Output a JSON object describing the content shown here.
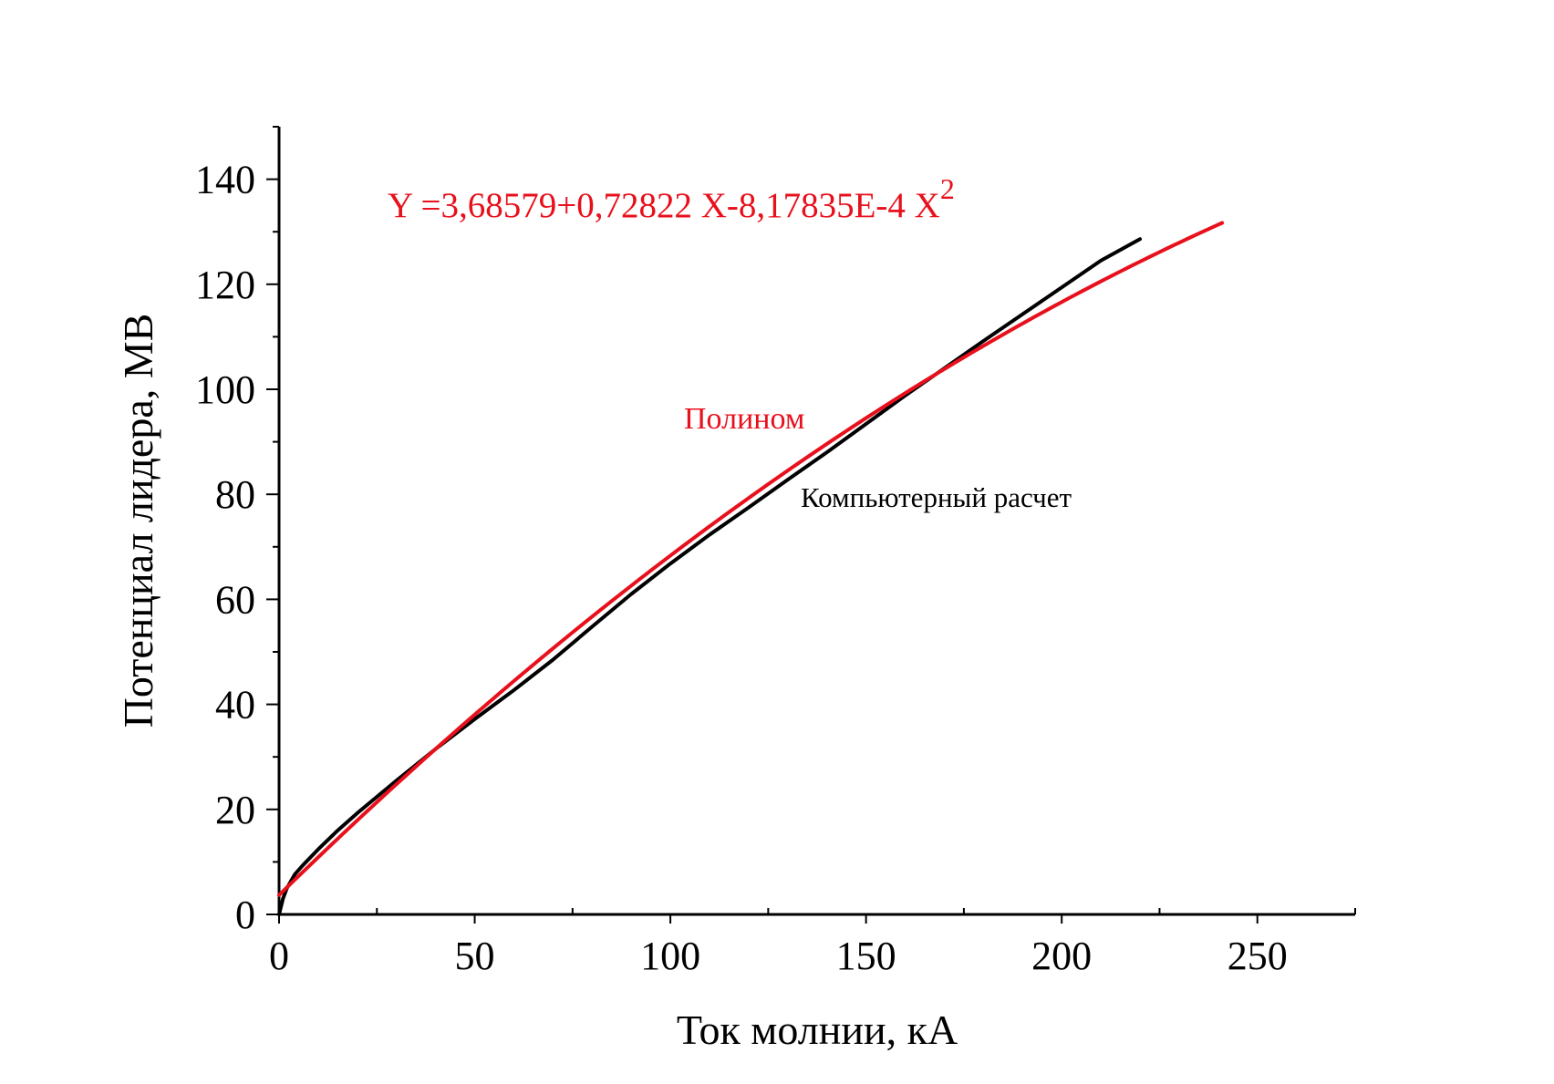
{
  "chart_data": {
    "type": "line",
    "title": "",
    "xlabel": "Ток молнии,  кА",
    "ylabel": "Потенциал лидера,  МВ",
    "xlim": [
      0,
      275
    ],
    "ylim": [
      0,
      150
    ],
    "xticks": [
      0,
      50,
      100,
      150,
      200,
      250
    ],
    "xtick_labels": [
      "0",
      "50",
      "100",
      "150",
      "200",
      "250"
    ],
    "xminor_ticks": [
      25,
      75,
      125,
      175,
      225,
      275
    ],
    "yticks": [
      0,
      20,
      40,
      60,
      80,
      100,
      120,
      140
    ],
    "ytick_labels": [
      "0",
      "20",
      "40",
      "60",
      "80",
      "100",
      "120",
      "140"
    ],
    "yminor_ticks": [
      10,
      30,
      50,
      70,
      90,
      110,
      130,
      150
    ],
    "grid": false,
    "series": [
      {
        "name": "Компьютерный расчет",
        "color": "#000000",
        "x": [
          0,
          1,
          2,
          4,
          6,
          10,
          15,
          20,
          30,
          40,
          50,
          60,
          70,
          80,
          90,
          100,
          110,
          120,
          130,
          140,
          150,
          160,
          170,
          180,
          190,
          200,
          210,
          220
        ],
        "y": [
          0,
          3.0,
          5.0,
          7.6,
          9.3,
          12.4,
          16.0,
          19.3,
          25.5,
          31.5,
          37.2,
          42.7,
          48.5,
          54.8,
          61.0,
          66.8,
          72.3,
          77.5,
          82.8,
          88.0,
          93.4,
          98.8,
          104.0,
          109.2,
          114.3,
          119.4,
          124.5,
          128.6
        ]
      },
      {
        "name": "Полином",
        "color": "#e8101c",
        "equation": {
          "a0": 3.68579,
          "a1": 0.72822,
          "a2": -0.000817835
        },
        "x_range": [
          0,
          241
        ]
      }
    ],
    "annotations": [
      {
        "label": "equation",
        "text": "Y =3,68579+0,72822 X-8,17835E-4 X",
        "superscript": "2",
        "color": "#e8101c"
      },
      {
        "label": "polynomial",
        "text": "Полином",
        "color": "#e8101c"
      },
      {
        "label": "computed",
        "text": "Компьютерный расчет",
        "color": "#000000"
      }
    ]
  }
}
